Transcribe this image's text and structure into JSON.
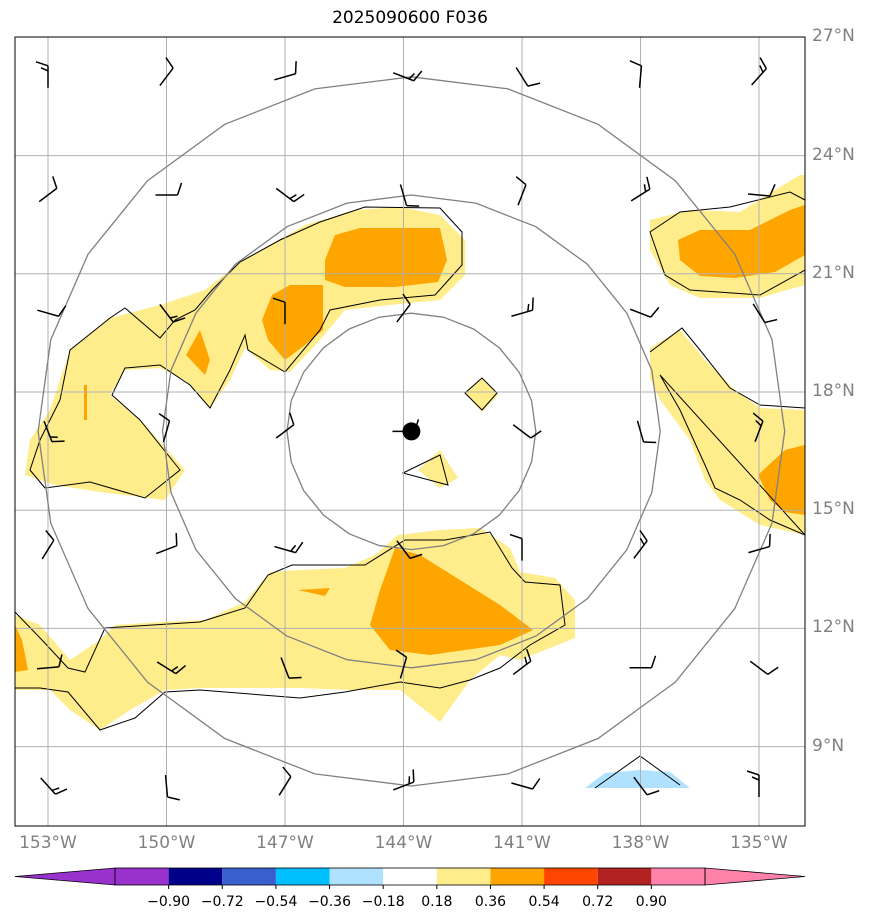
{
  "title": "2025090600 F036",
  "map": {
    "lon_ticks": [
      {
        "lon": -153,
        "label": "153°W"
      },
      {
        "lon": -150,
        "label": "150°W"
      },
      {
        "lon": -147,
        "label": "147°W"
      },
      {
        "lon": -144,
        "label": "144°W"
      },
      {
        "lon": -141,
        "label": "141°W"
      },
      {
        "lon": -138,
        "label": "138°W"
      },
      {
        "lon": -135,
        "label": "135°W"
      }
    ],
    "lat_ticks": [
      {
        "lat": 27,
        "label": "27°N"
      },
      {
        "lat": 24,
        "label": "24°N"
      },
      {
        "lat": 21,
        "label": "21°N"
      },
      {
        "lat": 18,
        "label": "18°N"
      },
      {
        "lat": 15,
        "label": "15°N"
      },
      {
        "lat": 12,
        "label": "12°N"
      },
      {
        "lat": 9,
        "label": "9°N"
      }
    ],
    "storm_center": {
      "lon": -143.8,
      "lat": 17.0
    },
    "range_ring_radii_deg": [
      3,
      6,
      9
    ],
    "wind_barb_grid": {
      "lons": [
        -153,
        -150,
        -147,
        -144,
        -141,
        -138,
        -135
      ],
      "lats": [
        26,
        23,
        20,
        17,
        14,
        11,
        8
      ]
    }
  },
  "colorbar": {
    "boundaries": [
      "−0.90",
      "−0.72",
      "−0.54",
      "−0.36",
      "−0.18",
      "0.18",
      "0.36",
      "0.54",
      "0.72",
      "0.90"
    ],
    "colors": [
      "#9932cc",
      "#9932cc",
      "#00008b",
      "#3a5fcd",
      "#00bfff",
      "#b0e2ff",
      "#ffffff",
      "#ffec8b",
      "#ffa500",
      "#ff4500",
      "#b22222",
      "#ff82ab",
      "#ff82ab"
    ]
  },
  "fill_colors": {
    "light_yellow": "#ffec8b",
    "orange": "#ffa500",
    "light_blue": "#b0e2ff"
  }
}
